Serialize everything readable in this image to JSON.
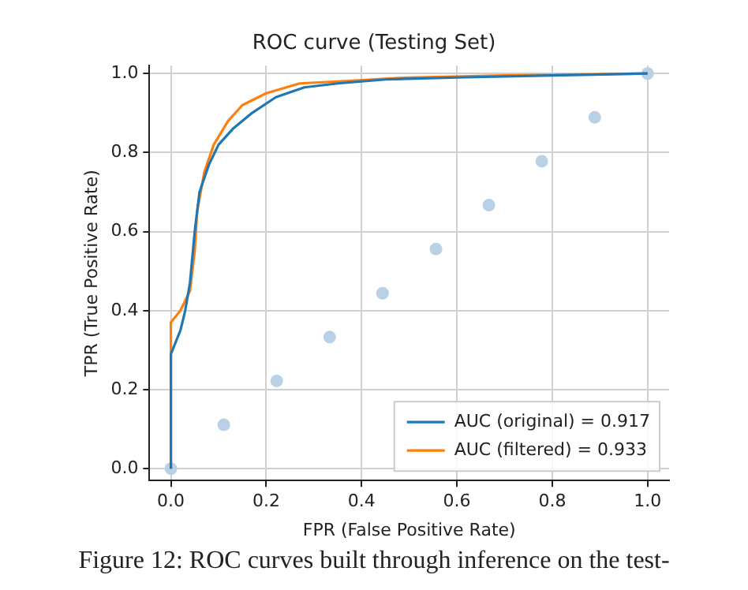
{
  "chart_data": {
    "type": "line",
    "title": "ROC curve (Testing Set)",
    "xlabel": "FPR (False Positive Rate)",
    "ylabel": "TPR (True Positive Rate)",
    "xlim": [
      -0.045,
      1.045
    ],
    "ylim": [
      -0.03,
      1.02
    ],
    "xticks": [
      {
        "value": 0,
        "label": "0.0"
      },
      0.2,
      0.4,
      0.6,
      0.8,
      {
        "value": 1,
        "label": "1.0"
      }
    ],
    "yticks": [
      {
        "value": 0,
        "label": "0.0"
      },
      0.2,
      0.4,
      0.6,
      0.8,
      {
        "value": 1,
        "label": "1.0"
      }
    ],
    "grid": true,
    "legend": "bottom right",
    "marker": "none",
    "line_style": "solid",
    "annotations": [
      "Figure 12: ROC curves built through inference on the test-"
    ],
    "series": [
      {
        "name": "AUC (original) = 0.917",
        "color": "#1f77b4",
        "x": [
          0,
          0,
          0.01,
          0.02,
          0.03,
          0.04,
          0.05,
          0.06,
          0.08,
          0.1,
          0.13,
          0.17,
          0.22,
          0.28,
          0.35,
          0.45,
          0.6,
          0.8,
          1
        ],
        "values": [
          0,
          0.29,
          0.32,
          0.35,
          0.4,
          0.47,
          0.6,
          0.7,
          0.77,
          0.82,
          0.86,
          0.9,
          0.94,
          0.965,
          0.975,
          0.985,
          0.99,
          0.995,
          1
        ]
      },
      {
        "name": "AUC (filtered) = 0.933",
        "color": "#ff7f0e",
        "x": [
          0,
          0,
          0.02,
          0.04,
          0.05,
          0.055,
          0.07,
          0.09,
          0.12,
          0.15,
          0.2,
          0.27,
          0.35,
          0.5,
          0.7,
          1
        ],
        "values": [
          0,
          0.37,
          0.4,
          0.45,
          0.55,
          0.65,
          0.75,
          0.82,
          0.88,
          0.92,
          0.95,
          0.975,
          0.98,
          0.99,
          0.995,
          1
        ]
      },
      {
        "type": "scatter",
        "marker": "circle",
        "color": "#b9d0e6",
        "x": [
          0,
          0.111,
          0.222,
          0.333,
          0.444,
          0.556,
          0.667,
          0.778,
          0.889,
          1
        ],
        "values": [
          0,
          0.111,
          0.222,
          0.333,
          0.444,
          0.556,
          0.667,
          0.778,
          0.889,
          1
        ]
      }
    ]
  }
}
